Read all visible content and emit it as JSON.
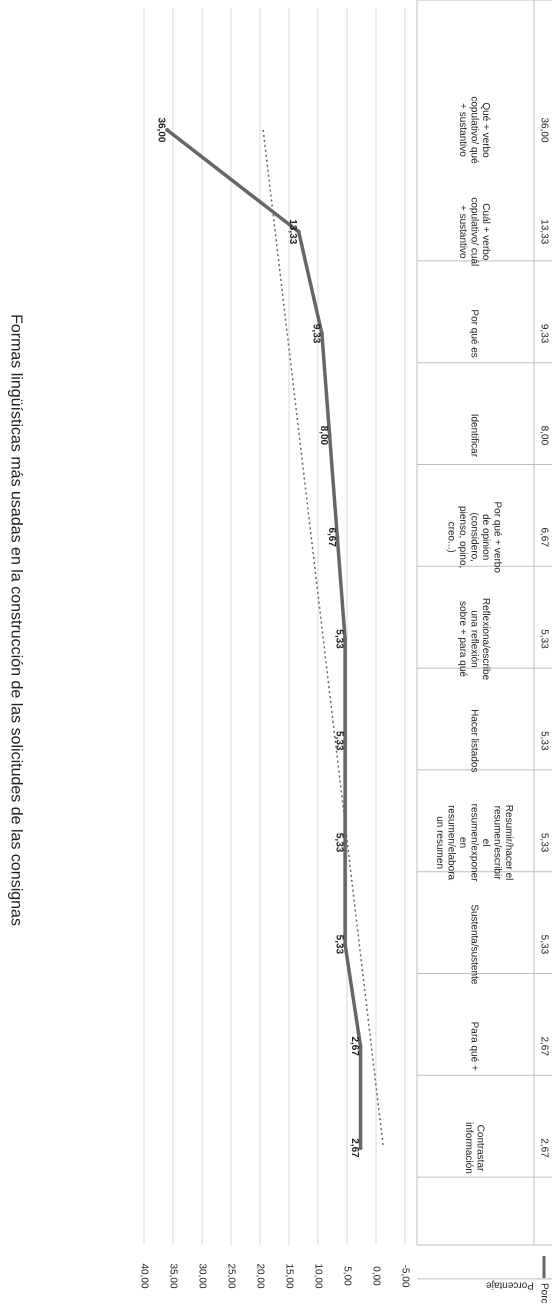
{
  "chart_data": {
    "type": "line",
    "title": "Formas lingüísticas más usadas en la construcción de las solicitudes de las consignas",
    "ylabel": "Porcentaje",
    "ylim": [
      -5,
      40
    ],
    "yticks": [
      "-5,00",
      "0,00",
      "5,00",
      "10,00",
      "15,00",
      "20,00",
      "25,00",
      "30,00",
      "35,00",
      "40,00"
    ],
    "categories": [
      "Qué + verbo copulativo/ qué + sustantivo",
      "Cuál + verbo copulativo/ cuál + sustantivo",
      "Por qué es",
      "Identificar",
      "Por qué + verbo de opinion (considero, pienso, opino, creo...)",
      "Reflexiona/escribe una reflexión sobre + para qué",
      "Hacer listados",
      "Resumir/hacer el resumen/escribir el resumen/exponer en resumen/elabora un resumen",
      "Sustenta/sustente",
      "Para qué +",
      "Contrastar información"
    ],
    "series": [
      {
        "name": "Porcentaje",
        "values": [
          36.0,
          13.33,
          9.33,
          8.0,
          6.67,
          5.33,
          5.33,
          5.33,
          5.33,
          2.67,
          2.67
        ],
        "labels": [
          "36,00",
          "13,33",
          "9,33",
          "8,00",
          "6,67",
          "5,33",
          "5,33",
          "5,33",
          "5,33",
          "2,67",
          "2,67"
        ],
        "color": "#666666"
      }
    ],
    "trendline": {
      "style": "dotted",
      "color": "#666666"
    },
    "grid": true,
    "table": {
      "header": "Porcentaje",
      "values": [
        "36,00",
        "13,33",
        "9,33",
        "8,00",
        "6,67",
        "5,33",
        "5,33",
        "5,33",
        "5,33",
        "2,67",
        "2,67"
      ]
    }
  }
}
